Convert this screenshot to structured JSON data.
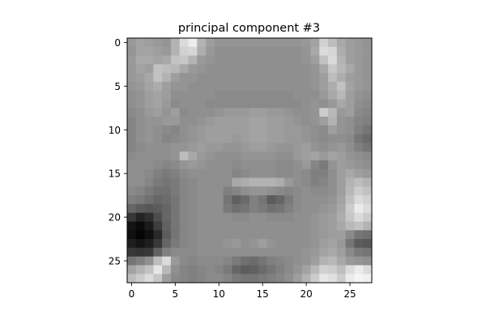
{
  "chart_data": {
    "type": "heatmap",
    "title": "principal component #3",
    "colormap": "gray",
    "value_range": [
      0,
      1
    ],
    "x_ticks": [
      "0",
      "5",
      "10",
      "15",
      "20",
      "25"
    ],
    "y_ticks": [
      "0",
      "5",
      "10",
      "15",
      "20",
      "25"
    ],
    "xlim": [
      -0.5,
      27.5
    ],
    "ylim": [
      27.5,
      -0.5
    ],
    "rows": 28,
    "cols": 28,
    "values": [
      [
        0.6,
        0.64,
        0.62,
        0.6,
        0.58,
        0.7,
        0.86,
        0.93,
        0.7,
        0.62,
        0.58,
        0.58,
        0.58,
        0.58,
        0.58,
        0.58,
        0.58,
        0.58,
        0.58,
        0.58,
        0.6,
        0.64,
        0.82,
        0.74,
        0.66,
        0.62,
        0.6,
        0.58
      ],
      [
        0.58,
        0.64,
        0.64,
        0.62,
        0.6,
        0.7,
        0.82,
        0.84,
        0.68,
        0.6,
        0.56,
        0.56,
        0.56,
        0.56,
        0.56,
        0.56,
        0.56,
        0.56,
        0.56,
        0.56,
        0.58,
        0.66,
        0.86,
        0.84,
        0.68,
        0.62,
        0.6,
        0.58
      ],
      [
        0.6,
        0.66,
        0.66,
        0.64,
        0.66,
        0.76,
        0.78,
        0.7,
        0.6,
        0.58,
        0.56,
        0.56,
        0.56,
        0.56,
        0.56,
        0.56,
        0.56,
        0.56,
        0.56,
        0.56,
        0.58,
        0.62,
        0.76,
        0.86,
        0.7,
        0.62,
        0.6,
        0.58
      ],
      [
        0.6,
        0.64,
        0.62,
        0.76,
        0.74,
        0.72,
        0.66,
        0.6,
        0.58,
        0.56,
        0.56,
        0.56,
        0.56,
        0.56,
        0.56,
        0.56,
        0.56,
        0.56,
        0.56,
        0.56,
        0.56,
        0.58,
        0.66,
        0.78,
        0.72,
        0.66,
        0.6,
        0.58
      ],
      [
        0.6,
        0.62,
        0.66,
        0.76,
        0.7,
        0.62,
        0.58,
        0.58,
        0.56,
        0.56,
        0.56,
        0.56,
        0.56,
        0.56,
        0.56,
        0.56,
        0.56,
        0.56,
        0.56,
        0.56,
        0.56,
        0.58,
        0.62,
        0.74,
        0.68,
        0.62,
        0.6,
        0.58
      ],
      [
        0.58,
        0.6,
        0.64,
        0.68,
        0.62,
        0.58,
        0.58,
        0.56,
        0.56,
        0.56,
        0.56,
        0.56,
        0.56,
        0.56,
        0.56,
        0.56,
        0.56,
        0.56,
        0.56,
        0.56,
        0.56,
        0.58,
        0.62,
        0.68,
        0.76,
        0.64,
        0.6,
        0.58
      ],
      [
        0.56,
        0.58,
        0.62,
        0.64,
        0.62,
        0.56,
        0.56,
        0.56,
        0.56,
        0.56,
        0.54,
        0.54,
        0.54,
        0.54,
        0.54,
        0.54,
        0.54,
        0.54,
        0.54,
        0.56,
        0.56,
        0.56,
        0.6,
        0.66,
        0.72,
        0.62,
        0.58,
        0.56
      ],
      [
        0.56,
        0.58,
        0.62,
        0.64,
        0.6,
        0.54,
        0.56,
        0.56,
        0.56,
        0.54,
        0.54,
        0.54,
        0.54,
        0.54,
        0.54,
        0.54,
        0.54,
        0.54,
        0.54,
        0.54,
        0.56,
        0.58,
        0.56,
        0.6,
        0.66,
        0.62,
        0.56,
        0.54
      ],
      [
        0.54,
        0.56,
        0.6,
        0.62,
        0.58,
        0.62,
        0.54,
        0.56,
        0.56,
        0.56,
        0.58,
        0.6,
        0.6,
        0.6,
        0.62,
        0.62,
        0.6,
        0.6,
        0.58,
        0.56,
        0.56,
        0.58,
        0.8,
        0.72,
        0.6,
        0.62,
        0.54,
        0.52
      ],
      [
        0.52,
        0.56,
        0.58,
        0.58,
        0.6,
        0.6,
        0.56,
        0.56,
        0.58,
        0.6,
        0.62,
        0.62,
        0.62,
        0.62,
        0.64,
        0.64,
        0.62,
        0.62,
        0.6,
        0.58,
        0.56,
        0.58,
        0.62,
        0.7,
        0.58,
        0.56,
        0.52,
        0.5
      ],
      [
        0.52,
        0.56,
        0.58,
        0.56,
        0.54,
        0.52,
        0.56,
        0.58,
        0.6,
        0.62,
        0.62,
        0.62,
        0.62,
        0.62,
        0.64,
        0.64,
        0.62,
        0.62,
        0.6,
        0.6,
        0.58,
        0.56,
        0.54,
        0.62,
        0.58,
        0.56,
        0.5,
        0.46
      ],
      [
        0.52,
        0.56,
        0.58,
        0.56,
        0.52,
        0.54,
        0.56,
        0.58,
        0.6,
        0.62,
        0.62,
        0.62,
        0.6,
        0.62,
        0.64,
        0.64,
        0.62,
        0.62,
        0.6,
        0.6,
        0.58,
        0.56,
        0.54,
        0.56,
        0.56,
        0.54,
        0.46,
        0.42
      ],
      [
        0.52,
        0.54,
        0.56,
        0.56,
        0.56,
        0.58,
        0.58,
        0.6,
        0.62,
        0.6,
        0.6,
        0.58,
        0.58,
        0.6,
        0.62,
        0.62,
        0.6,
        0.58,
        0.58,
        0.6,
        0.62,
        0.58,
        0.56,
        0.58,
        0.6,
        0.56,
        0.5,
        0.46
      ],
      [
        0.54,
        0.56,
        0.56,
        0.56,
        0.56,
        0.58,
        0.74,
        0.66,
        0.6,
        0.58,
        0.56,
        0.56,
        0.56,
        0.58,
        0.58,
        0.58,
        0.58,
        0.56,
        0.56,
        0.6,
        0.62,
        0.64,
        0.6,
        0.64,
        0.62,
        0.58,
        0.56,
        0.54
      ],
      [
        0.56,
        0.56,
        0.56,
        0.54,
        0.52,
        0.54,
        0.58,
        0.6,
        0.58,
        0.56,
        0.56,
        0.56,
        0.54,
        0.56,
        0.56,
        0.56,
        0.56,
        0.54,
        0.54,
        0.56,
        0.6,
        0.52,
        0.48,
        0.58,
        0.62,
        0.6,
        0.58,
        0.56
      ],
      [
        0.56,
        0.56,
        0.54,
        0.5,
        0.48,
        0.5,
        0.54,
        0.56,
        0.56,
        0.56,
        0.56,
        0.56,
        0.52,
        0.54,
        0.56,
        0.56,
        0.56,
        0.54,
        0.54,
        0.56,
        0.54,
        0.5,
        0.5,
        0.56,
        0.62,
        0.66,
        0.62,
        0.6
      ],
      [
        0.56,
        0.56,
        0.52,
        0.48,
        0.46,
        0.48,
        0.52,
        0.54,
        0.56,
        0.56,
        0.56,
        0.56,
        0.66,
        0.68,
        0.7,
        0.7,
        0.7,
        0.68,
        0.6,
        0.56,
        0.54,
        0.5,
        0.52,
        0.56,
        0.62,
        0.7,
        0.74,
        0.7
      ],
      [
        0.54,
        0.52,
        0.48,
        0.44,
        0.44,
        0.48,
        0.52,
        0.54,
        0.56,
        0.56,
        0.56,
        0.5,
        0.52,
        0.56,
        0.58,
        0.58,
        0.56,
        0.54,
        0.52,
        0.54,
        0.56,
        0.54,
        0.54,
        0.56,
        0.62,
        0.72,
        0.8,
        0.76
      ],
      [
        0.5,
        0.48,
        0.44,
        0.4,
        0.42,
        0.46,
        0.52,
        0.54,
        0.56,
        0.56,
        0.56,
        0.46,
        0.38,
        0.42,
        0.5,
        0.46,
        0.36,
        0.4,
        0.48,
        0.54,
        0.56,
        0.56,
        0.56,
        0.58,
        0.64,
        0.76,
        0.86,
        0.82
      ],
      [
        0.4,
        0.36,
        0.34,
        0.36,
        0.4,
        0.46,
        0.52,
        0.54,
        0.56,
        0.56,
        0.56,
        0.48,
        0.44,
        0.46,
        0.5,
        0.48,
        0.44,
        0.46,
        0.5,
        0.54,
        0.56,
        0.56,
        0.58,
        0.6,
        0.66,
        0.8,
        0.92,
        0.86
      ],
      [
        0.22,
        0.14,
        0.18,
        0.3,
        0.4,
        0.46,
        0.52,
        0.54,
        0.56,
        0.56,
        0.56,
        0.56,
        0.54,
        0.54,
        0.56,
        0.56,
        0.54,
        0.54,
        0.54,
        0.56,
        0.56,
        0.58,
        0.6,
        0.62,
        0.68,
        0.78,
        0.86,
        0.8
      ],
      [
        0.08,
        0.04,
        0.1,
        0.24,
        0.38,
        0.46,
        0.52,
        0.54,
        0.56,
        0.56,
        0.56,
        0.56,
        0.56,
        0.56,
        0.56,
        0.56,
        0.56,
        0.56,
        0.56,
        0.56,
        0.56,
        0.58,
        0.6,
        0.62,
        0.66,
        0.72,
        0.76,
        0.7
      ],
      [
        0.06,
        0.02,
        0.06,
        0.16,
        0.36,
        0.46,
        0.52,
        0.54,
        0.56,
        0.56,
        0.56,
        0.56,
        0.56,
        0.56,
        0.56,
        0.56,
        0.56,
        0.56,
        0.56,
        0.56,
        0.56,
        0.58,
        0.6,
        0.62,
        0.62,
        0.54,
        0.46,
        0.44
      ],
      [
        0.12,
        0.08,
        0.12,
        0.22,
        0.4,
        0.48,
        0.52,
        0.54,
        0.56,
        0.56,
        0.56,
        0.58,
        0.6,
        0.56,
        0.58,
        0.62,
        0.58,
        0.56,
        0.56,
        0.56,
        0.56,
        0.58,
        0.62,
        0.64,
        0.6,
        0.46,
        0.36,
        0.34
      ],
      [
        0.22,
        0.2,
        0.22,
        0.38,
        0.5,
        0.54,
        0.54,
        0.54,
        0.56,
        0.56,
        0.56,
        0.56,
        0.56,
        0.56,
        0.56,
        0.56,
        0.56,
        0.56,
        0.56,
        0.56,
        0.58,
        0.6,
        0.64,
        0.66,
        0.62,
        0.54,
        0.48,
        0.46
      ],
      [
        0.46,
        0.5,
        0.56,
        0.74,
        0.86,
        0.6,
        0.54,
        0.52,
        0.54,
        0.54,
        0.54,
        0.52,
        0.48,
        0.44,
        0.42,
        0.46,
        0.5,
        0.52,
        0.54,
        0.56,
        0.58,
        0.62,
        0.7,
        0.72,
        0.66,
        0.6,
        0.58,
        0.56
      ],
      [
        0.64,
        0.7,
        0.76,
        0.9,
        0.72,
        0.56,
        0.52,
        0.5,
        0.52,
        0.54,
        0.52,
        0.48,
        0.4,
        0.36,
        0.38,
        0.42,
        0.46,
        0.5,
        0.54,
        0.58,
        0.64,
        0.72,
        0.82,
        0.8,
        0.74,
        0.86,
        0.92,
        0.86
      ],
      [
        0.74,
        0.8,
        0.86,
        0.78,
        0.62,
        0.54,
        0.52,
        0.5,
        0.52,
        0.54,
        0.54,
        0.52,
        0.48,
        0.46,
        0.46,
        0.48,
        0.5,
        0.52,
        0.56,
        0.62,
        0.7,
        0.8,
        0.9,
        0.88,
        0.8,
        0.92,
        0.96,
        0.94
      ]
    ]
  }
}
